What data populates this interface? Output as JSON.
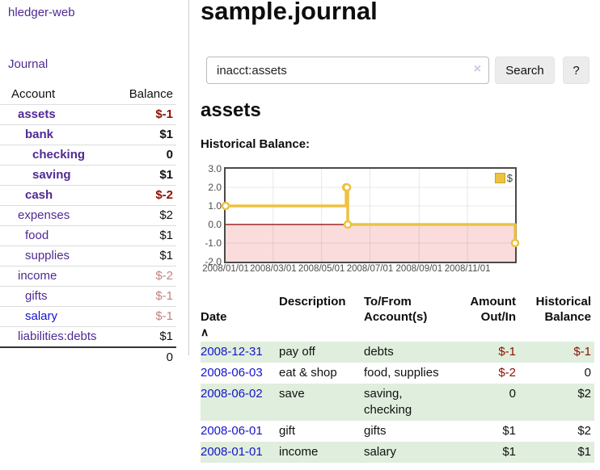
{
  "app": {
    "title": "hledger-web",
    "nav_journal": "Journal"
  },
  "sidebar": {
    "header": {
      "account": "Account",
      "balance": "Balance"
    },
    "accounts": [
      {
        "name": "assets",
        "indent": 0,
        "bold": true,
        "link": "purple",
        "balance": "$-1",
        "neg": "dark"
      },
      {
        "name": "bank",
        "indent": 1,
        "bold": true,
        "link": "purple",
        "balance": "$1",
        "neg": null
      },
      {
        "name": "checking",
        "indent": 2,
        "bold": true,
        "link": "purple",
        "balance": "0",
        "neg": null
      },
      {
        "name": "saving",
        "indent": 2,
        "bold": true,
        "link": "purple",
        "balance": "$1",
        "neg": null
      },
      {
        "name": "cash",
        "indent": 1,
        "bold": true,
        "link": "purple",
        "balance": "$-2",
        "neg": "dark"
      },
      {
        "name": "expenses",
        "indent": 0,
        "bold": false,
        "link": "purple",
        "balance": "$2",
        "neg": null
      },
      {
        "name": "food",
        "indent": 1,
        "bold": false,
        "link": "purple",
        "balance": "$1",
        "neg": null
      },
      {
        "name": "supplies",
        "indent": 1,
        "bold": false,
        "link": "purple",
        "balance": "$1",
        "neg": null
      },
      {
        "name": "income",
        "indent": 0,
        "bold": false,
        "link": "purple",
        "balance": "$-2",
        "neg": "light"
      },
      {
        "name": "gifts",
        "indent": 1,
        "bold": false,
        "link": "purple",
        "balance": "$-1",
        "neg": "light"
      },
      {
        "name": "salary",
        "indent": 1,
        "bold": false,
        "link": "blue",
        "balance": "$-1",
        "neg": "light"
      },
      {
        "name": "liabilities:debts",
        "indent": 0,
        "bold": false,
        "link": "purple",
        "balance": "$1",
        "neg": null
      }
    ],
    "total": "0"
  },
  "main": {
    "title": "sample.journal",
    "search": {
      "value": "inacct:assets",
      "clear_icon": "×",
      "button": "Search",
      "help": "?"
    },
    "account_heading": "assets",
    "chart_label": "Historical Balance:"
  },
  "chart_data": {
    "type": "line",
    "title": "Historical Balance:",
    "style": "step-after",
    "series": [
      {
        "name": "$",
        "color": "#edc240",
        "points": [
          [
            "2008-01-01",
            1
          ],
          [
            "2008-06-01",
            2
          ],
          [
            "2008-06-02",
            2
          ],
          [
            "2008-06-03",
            0
          ],
          [
            "2008-12-31",
            -1
          ]
        ]
      }
    ],
    "x_ticks": [
      "2008/01/01",
      "2008/03/01",
      "2008/05/01",
      "2008/07/01",
      "2008/09/01",
      "2008/11/01"
    ],
    "y_ticks": [
      "3.0",
      "2.0",
      "1.0",
      "0.0",
      "-1.0",
      "-2.0"
    ],
    "xlim": [
      "2008-01-01",
      "2008-12-31"
    ],
    "ylim": [
      -2,
      3
    ],
    "grid": true,
    "legend": {
      "label": "$",
      "position": "top-right"
    },
    "negative_region": {
      "from": 0,
      "to": -2,
      "fill": "#fbdcdc",
      "zero_line_color": "#8b0000"
    }
  },
  "register": {
    "headers": {
      "date": "Date",
      "sort_icon": "∧",
      "description": "Description",
      "accounts": "To/From\nAccount(s)",
      "amount": "Amount\nOut/In",
      "balance": "Historical\nBalance"
    },
    "rows": [
      {
        "date": "2008-12-31",
        "description": "pay off",
        "accounts": "debts",
        "amount": "$-1",
        "amount_neg": true,
        "balance": "$-1",
        "balance_neg": true
      },
      {
        "date": "2008-06-03",
        "description": "eat & shop",
        "accounts": "food, supplies",
        "amount": "$-2",
        "amount_neg": true,
        "balance": "0",
        "balance_neg": false
      },
      {
        "date": "2008-06-02",
        "description": "save",
        "accounts": "saving,\nchecking",
        "amount": "0",
        "amount_neg": false,
        "balance": "$2",
        "balance_neg": false
      },
      {
        "date": "2008-06-01",
        "description": "gift",
        "accounts": "gifts",
        "amount": "$1",
        "amount_neg": false,
        "balance": "$2",
        "balance_neg": false
      },
      {
        "date": "2008-01-01",
        "description": "income",
        "accounts": "salary",
        "amount": "$1",
        "amount_neg": false,
        "balance": "$1",
        "balance_neg": false
      }
    ]
  },
  "colors": {
    "purple": "#4f2a93",
    "blue": "#1414cc",
    "neg_dark": "#8b1000",
    "neg_light": "#c38282",
    "gold": "#edc240",
    "gold_border": "#c7a42c",
    "row_green": "#e0eedd",
    "region_pink": "#fbdcdc",
    "zero_line": "#8b0000",
    "grid_border": "#4a4a4a",
    "tick_text": "#4d4d4d"
  }
}
